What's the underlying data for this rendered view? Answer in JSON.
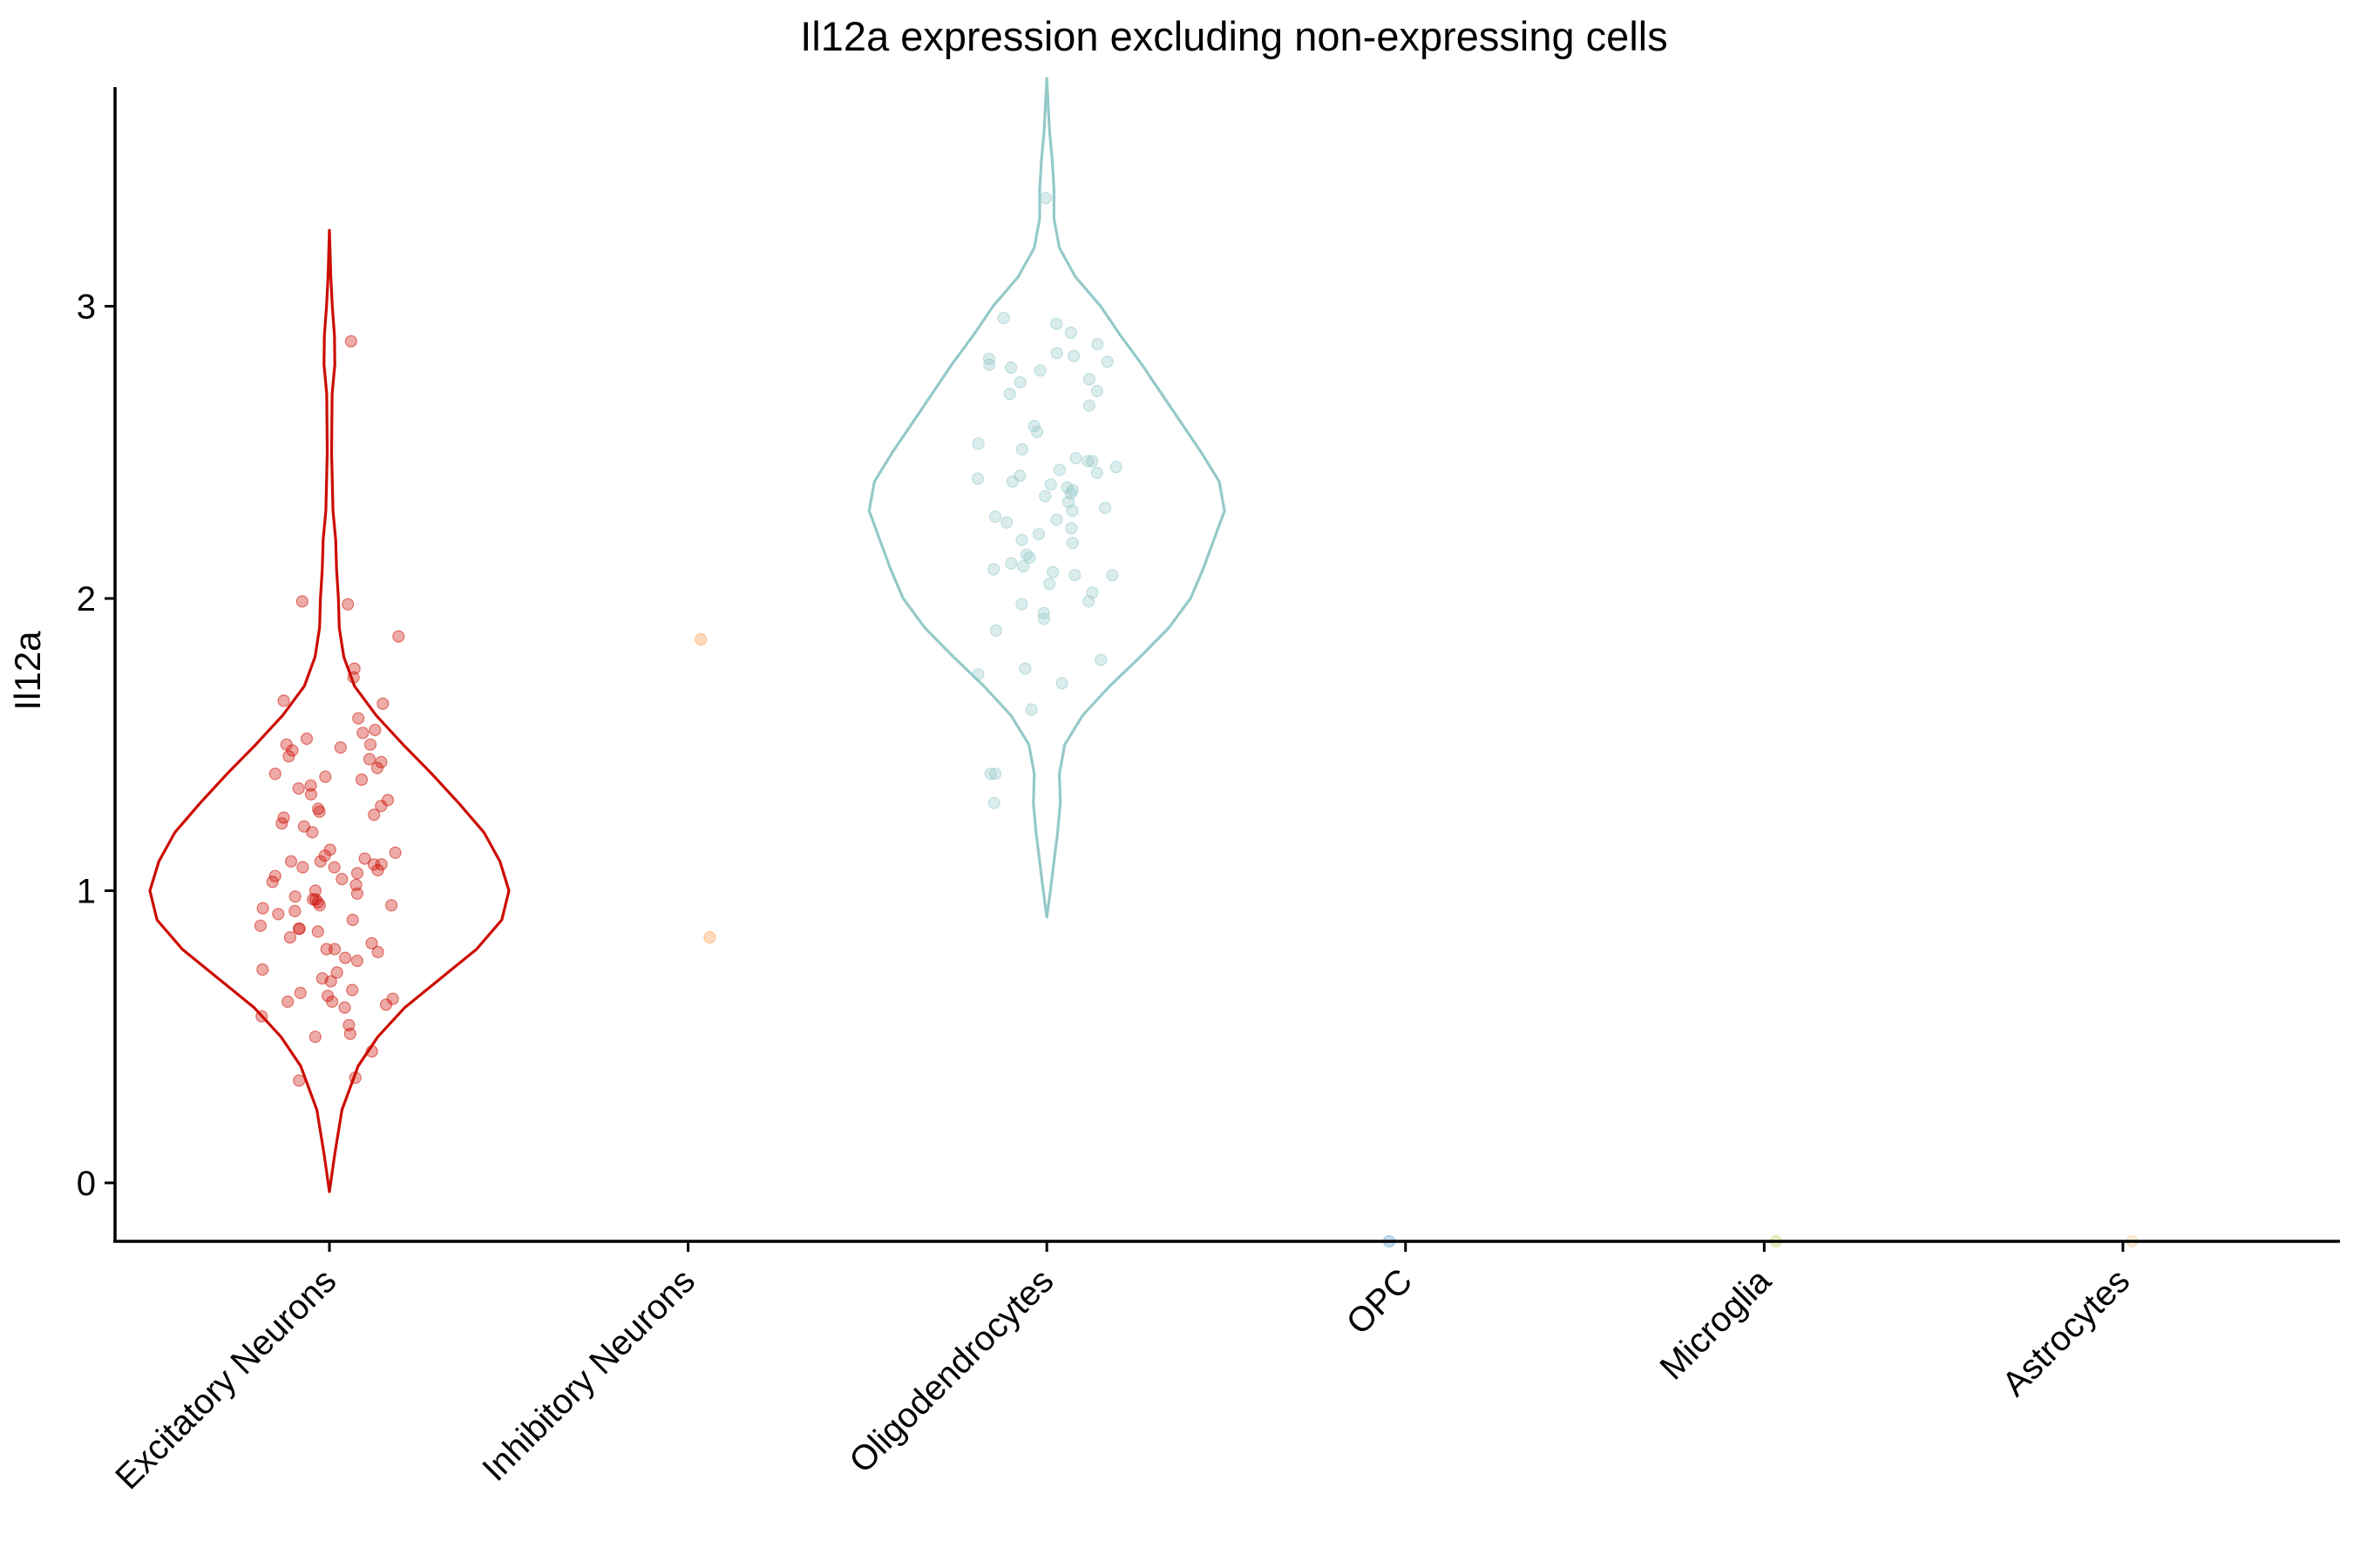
{
  "chart_data": {
    "type": "violin",
    "title": "Il12a expression excluding non-expressing cells",
    "xlabel": "",
    "ylabel": "Il12a",
    "ylim": [
      -0.2,
      3.75
    ],
    "yticks": [
      0,
      1,
      2,
      3
    ],
    "grid": false,
    "legend": "none",
    "categories": [
      "Excitatory Neurons",
      "Inhibitory Neurons",
      "Oligodendrocytes",
      "OPC",
      "Microglia",
      "Astrocytes"
    ],
    "series": [
      {
        "category": "Excitatory Neurons",
        "color": "#CC0C00",
        "violin": {
          "y": [
            -0.03,
            0.1,
            0.25,
            0.4,
            0.5,
            0.6,
            0.7,
            0.8,
            0.9,
            1.0,
            1.1,
            1.2,
            1.3,
            1.4,
            1.5,
            1.6,
            1.7,
            1.8,
            1.9,
            2.0,
            2.1,
            2.2,
            2.3,
            2.5,
            2.7,
            2.8,
            2.9,
            3.0,
            3.1,
            3.26
          ],
          "density": [
            0.0,
            0.03,
            0.07,
            0.16,
            0.27,
            0.42,
            0.62,
            0.82,
            0.96,
            1.0,
            0.95,
            0.86,
            0.72,
            0.57,
            0.41,
            0.26,
            0.14,
            0.08,
            0.055,
            0.05,
            0.04,
            0.035,
            0.02,
            0.012,
            0.015,
            0.03,
            0.028,
            0.016,
            0.008,
            0.0
          ]
        },
        "points": [
          2.88,
          1.99,
          1.98,
          1.87,
          1.76,
          1.73,
          1.65,
          1.64,
          1.59,
          1.55,
          1.54,
          1.52,
          1.5,
          1.5,
          1.49,
          1.48,
          1.46,
          1.45,
          1.44,
          1.42,
          1.4,
          1.39,
          1.38,
          1.36,
          1.35,
          1.33,
          1.31,
          1.29,
          1.28,
          1.27,
          1.26,
          1.25,
          1.23,
          1.22,
          1.2,
          1.14,
          1.13,
          1.12,
          1.11,
          1.1,
          1.1,
          1.09,
          1.09,
          1.08,
          1.08,
          1.07,
          1.06,
          1.05,
          1.04,
          1.03,
          1.02,
          1.0,
          0.99,
          0.98,
          0.97,
          0.97,
          0.96,
          0.95,
          0.95,
          0.94,
          0.93,
          0.92,
          0.9,
          0.88,
          0.87,
          0.87,
          0.86,
          0.84,
          0.82,
          0.8,
          0.8,
          0.79,
          0.77,
          0.76,
          0.73,
          0.72,
          0.7,
          0.69,
          0.66,
          0.65,
          0.64,
          0.63,
          0.62,
          0.62,
          0.61,
          0.6,
          0.57,
          0.54,
          0.51,
          0.5,
          0.45,
          0.36,
          0.35
        ]
      },
      {
        "category": "Inhibitory Neurons",
        "color": "#FF9944",
        "violin": null,
        "points": [
          1.86,
          0.84
        ]
      },
      {
        "category": "Oligodendrocytes",
        "color": "#94C9C9",
        "violin": {
          "y": [
            0.91,
            1.0,
            1.1,
            1.2,
            1.3,
            1.4,
            1.5,
            1.6,
            1.7,
            1.8,
            1.9,
            2.0,
            2.1,
            2.2,
            2.3,
            2.4,
            2.5,
            2.6,
            2.7,
            2.8,
            2.9,
            3.0,
            3.1,
            3.2,
            3.3,
            3.4,
            3.5,
            3.6,
            3.78
          ],
          "density": [
            0.0,
            0.02,
            0.04,
            0.06,
            0.075,
            0.07,
            0.1,
            0.2,
            0.35,
            0.52,
            0.68,
            0.8,
            0.87,
            0.93,
            0.99,
            0.96,
            0.86,
            0.75,
            0.64,
            0.53,
            0.41,
            0.3,
            0.16,
            0.07,
            0.04,
            0.04,
            0.03,
            0.015,
            0.0
          ]
        },
        "points": [
          3.37,
          2.96,
          2.94,
          2.91,
          2.87,
          2.84,
          2.83,
          2.82,
          2.81,
          2.8,
          2.79,
          2.78,
          2.75,
          2.74,
          2.71,
          2.7,
          2.66,
          2.59,
          2.57,
          2.53,
          2.51,
          2.48,
          2.47,
          2.47,
          2.45,
          2.44,
          2.43,
          2.42,
          2.41,
          2.4,
          2.39,
          2.38,
          2.37,
          2.36,
          2.35,
          2.33,
          2.31,
          2.3,
          2.28,
          2.27,
          2.26,
          2.24,
          2.22,
          2.2,
          2.19,
          2.15,
          2.14,
          2.12,
          2.11,
          2.1,
          2.09,
          2.08,
          2.08,
          2.05,
          2.02,
          1.99,
          1.98,
          1.95,
          1.93,
          1.89,
          1.79,
          1.76,
          1.74,
          1.71,
          1.62,
          1.4,
          1.4,
          1.3
        ]
      },
      {
        "category": "OPC",
        "color": "#5A9FD4",
        "violin": null,
        "points": [
          -0.2
        ]
      },
      {
        "category": "Microglia",
        "color": "#C9D16E",
        "violin": null,
        "points": [
          -0.2
        ]
      },
      {
        "category": "Astrocytes",
        "color": "#F5CC96",
        "violin": null,
        "points": [
          -0.2
        ]
      }
    ]
  }
}
